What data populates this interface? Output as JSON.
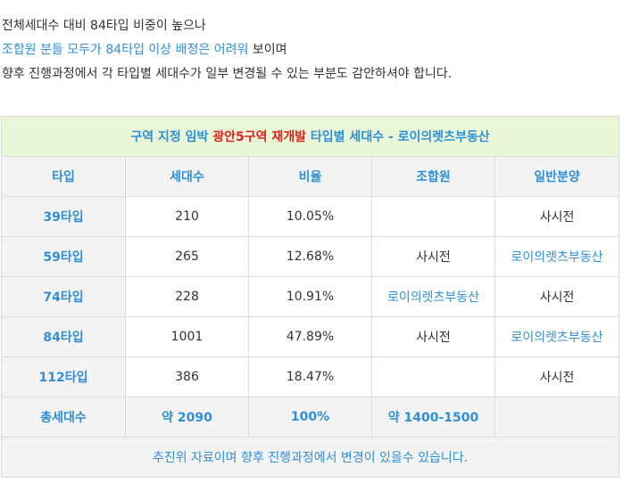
{
  "intro": {
    "line1": "전체세대수 대비 84타입 비중이 높으나",
    "line2_blue": "조합원 분들 모두가 84타입 이상 배정은 어려워",
    "line2_rest": " 보이며",
    "line3": "향후 진행과정에서 각 타입별 세대수가 일부 변경될 수 있는 부분도 감안하셔야 합니다."
  },
  "table": {
    "title_pre": "구역 지정 임박 ",
    "title_red": "광안5구역 재개발",
    "title_post": " 타입별 세대수 - 로이의렛츠부동산",
    "headers": [
      "타입",
      "세대수",
      "비율",
      "조합원",
      "일반분양"
    ],
    "rows": [
      {
        "type": "39타입",
        "units": "210",
        "ratio": "10.05%",
        "member": "",
        "general": "사시전"
      },
      {
        "type": "59타입",
        "units": "265",
        "ratio": "12.68%",
        "member": "사시전",
        "general": "로이의렛츠부동산"
      },
      {
        "type": "74타입",
        "units": "228",
        "ratio": "10.91%",
        "member": "로이의렛츠부동산",
        "general": "사시전"
      },
      {
        "type": "84타입",
        "units": "1001",
        "ratio": "47.89%",
        "member": "사시전",
        "general": "로이의렛츠부동산"
      },
      {
        "type": "112타입",
        "units": "386",
        "ratio": "18.47%",
        "member": "",
        "general": "사시전"
      }
    ],
    "total": {
      "label": "총세대수",
      "units": "약 2090",
      "ratio": "100%",
      "member": "약 1400-1500",
      "general": ""
    },
    "footnote": "추진위 자료이며 향후 진행과정에서 변경이 있을수 있습니다."
  },
  "colors": {
    "accent_blue": "#2f8fd8",
    "accent_red": "#e02020",
    "title_bg": "#e9f7d6",
    "header_bg": "#f3f3f3"
  }
}
